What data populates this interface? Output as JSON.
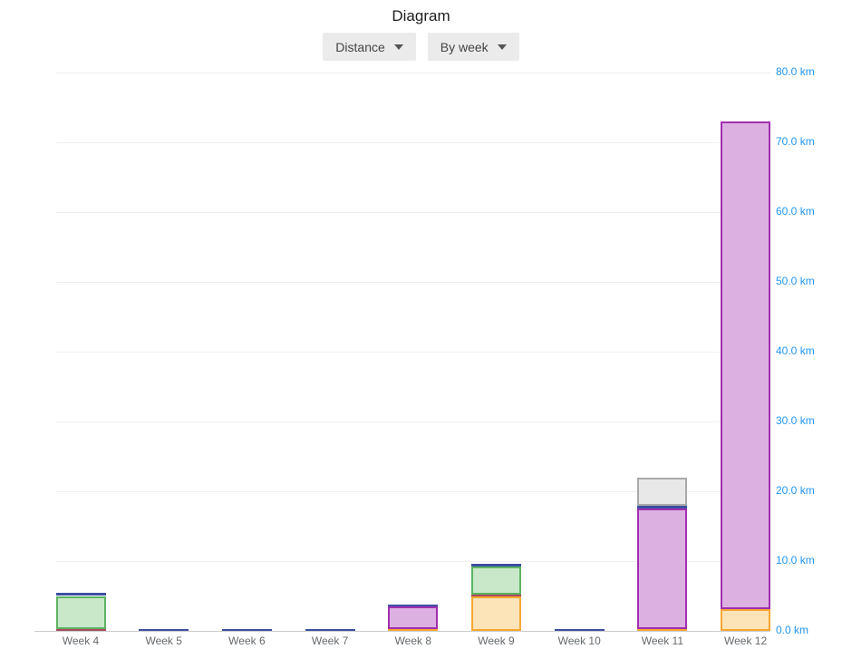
{
  "title": "Diagram",
  "toolbar": {
    "metric_dropdown": {
      "label": "Distance",
      "icon": "caret-down-icon"
    },
    "period_dropdown": {
      "label": "By week",
      "icon": "caret-down-icon"
    }
  },
  "chart_data": {
    "type": "bar",
    "stacked": true,
    "title": "Diagram",
    "categories": [
      "Week 4",
      "Week 5",
      "Week 6",
      "Week 7",
      "Week 8",
      "Week 9",
      "Week 10",
      "Week 11",
      "Week 12"
    ],
    "series": [
      {
        "name": "orange",
        "fill": "#fde3b8",
        "border": "#f5a733",
        "values": [
          0,
          0,
          0,
          0,
          0.3,
          4.9,
          0,
          0.3,
          3.1
        ]
      },
      {
        "name": "red",
        "fill": "#d4919c",
        "border": "#aa4a5c",
        "values": [
          0.3,
          0,
          0,
          0,
          0,
          0.25,
          0,
          0,
          0
        ]
      },
      {
        "name": "green",
        "fill": "#c9e8c9",
        "border": "#5cb360",
        "values": [
          4.7,
          0,
          0,
          0,
          0,
          4.1,
          0,
          0,
          0
        ]
      },
      {
        "name": "purple",
        "fill": "#dcb1e2",
        "border": "#a12fae",
        "values": [
          0,
          0,
          0,
          0,
          3.2,
          0,
          0,
          17.2,
          69.9
        ]
      },
      {
        "name": "blue",
        "fill": "#6c7cc0",
        "border": "#3d4fa1",
        "values": [
          0.4,
          0.3,
          0.3,
          0.3,
          0.3,
          0.3,
          0.3,
          0.4,
          0
        ]
      },
      {
        "name": "gray",
        "fill": "#e8e8e8",
        "border": "#a9a9a9",
        "values": [
          0,
          0,
          0,
          0,
          0,
          0,
          0,
          4.0,
          0
        ]
      }
    ],
    "ylim": [
      0,
      80
    ],
    "y_ticks": [
      "0.0 km",
      "10.0 km",
      "20.0 km",
      "30.0 km",
      "40.0 km",
      "50.0 km",
      "60.0 km",
      "70.0 km",
      "80.0 km"
    ],
    "y_axis_side": "right",
    "y_axis_label_color": "#2196f3",
    "grid": true,
    "legend": "none",
    "xlabel": "",
    "ylabel": ""
  }
}
